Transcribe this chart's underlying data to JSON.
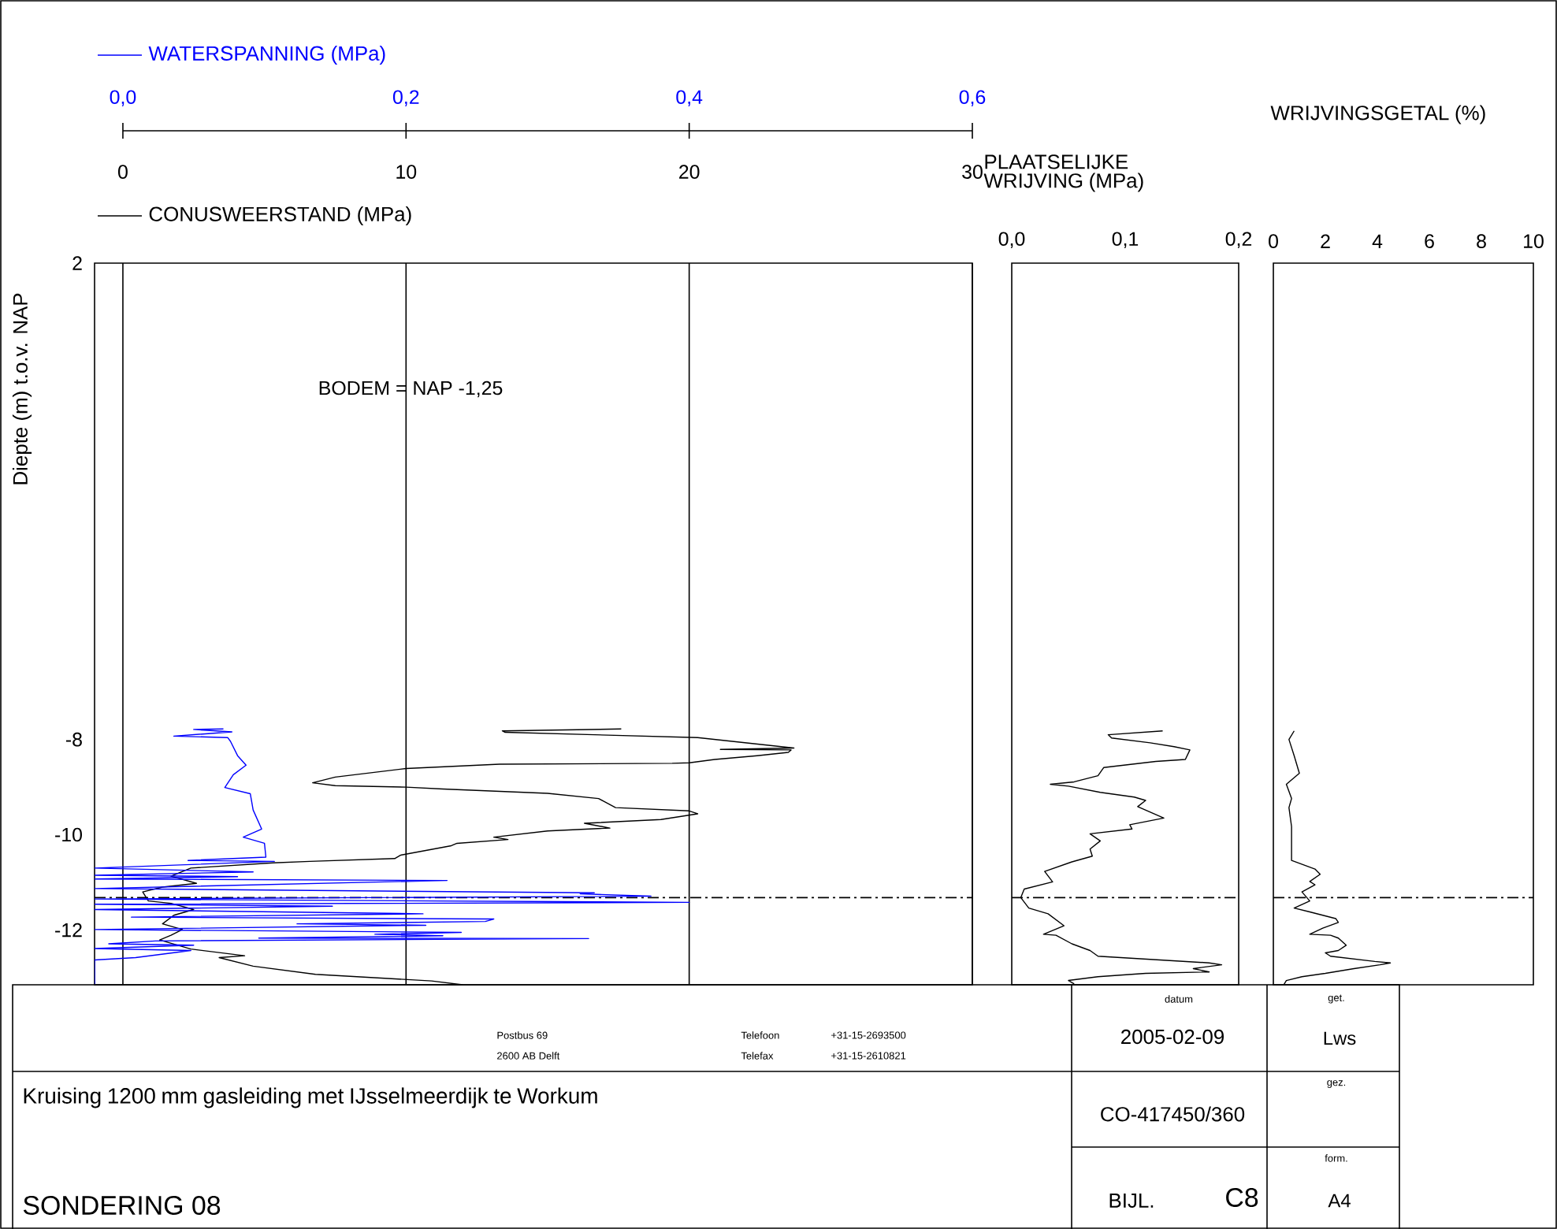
{
  "chart_data": [
    {
      "type": "line",
      "xlim": [
        -1,
        30
      ],
      "xticks": [
        0,
        10,
        20,
        30
      ],
      "x2lim": [
        -0.02,
        0.6
      ],
      "x2ticks": [
        {
          "value": 0,
          "label": "0,0"
        },
        {
          "value": 0.2,
          "label": "0,2"
        },
        {
          "value": 0.4,
          "label": "0,4"
        },
        {
          "value": 0.6,
          "label": "0,6"
        }
      ],
      "ylim": [
        -13.15,
        2
      ],
      "yticks": [
        2,
        -8,
        -10,
        -12
      ],
      "ylabel": "Diepte (m) t.o.v. NAP",
      "grid": "x",
      "legend": "top",
      "ref_lines": [
        {
          "axis": "y",
          "value": -11.32,
          "line_style": "dashdot"
        }
      ],
      "annotations": [
        "BODEM = NAP -1,25",
        "Postbus 69",
        "2600 AB Delft",
        "Telefoon",
        "+31-15-2693500",
        "Telefax",
        "+31-15-2610821",
        "datum",
        "2005-02-09",
        "get.",
        "Lws",
        "gez.",
        "CO-417450/360",
        "form.",
        "A4",
        "BIJL.",
        "C8",
        "Kruising 1200 mm gasleiding met IJsselmeerdijk te Workum",
        "SONDERING 08"
      ],
      "series": [
        {
          "name": "WATERSPANNING (MPa)",
          "color": "#0000ff",
          "axis": "x2",
          "x": [
            0.071,
            0.05,
            0.077,
            0.036,
            0.074,
            0.076,
            0.081,
            0.087,
            0.078,
            0.072,
            0.09,
            0.092,
            0.098,
            0.085,
            0.1,
            0.101,
            0.046,
            0.107,
            -0.02,
            0.092,
            -0.02,
            0.081,
            -0.02,
            0.229,
            -0.02,
            0.333,
            0.323,
            0.373,
            -0.02,
            0.4,
            -0.02,
            0.148,
            -0.02,
            0.212,
            0.006,
            0.262,
            0.256,
            0.123,
            0.214,
            -0.02,
            0.239,
            0.178,
            0.226,
            0.096,
            0.329,
            0.023,
            -0.01,
            0.05,
            -0.02,
            0.048,
            0.009,
            -0.02,
            -0.02
          ],
          "values": [
            -7.78,
            -7.79,
            -7.84,
            -7.93,
            -7.96,
            -8.04,
            -8.34,
            -8.54,
            -8.74,
            -9.01,
            -9.14,
            -9.48,
            -9.88,
            -10.05,
            -10.18,
            -10.47,
            -10.54,
            -10.56,
            -10.7,
            -10.78,
            -10.85,
            -10.88,
            -10.93,
            -10.96,
            -11.13,
            -11.22,
            -11.24,
            -11.29,
            -11.35,
            -11.42,
            -11.46,
            -11.5,
            -11.57,
            -11.66,
            -11.73,
            -11.77,
            -11.82,
            -11.87,
            -11.9,
            -11.99,
            -12.05,
            -12.09,
            -12.12,
            -12.17,
            -12.18,
            -12.23,
            -12.29,
            -12.32,
            -12.39,
            -12.43,
            -12.58,
            -12.63,
            -13.15
          ]
        },
        {
          "name": "CONUSWEERSTAND (MPa)",
          "color": "#000000",
          "x": [
            17.6,
            13.4,
            13.5,
            20.3,
            23.7,
            21.1,
            23.6,
            23.5,
            22.4,
            20.9,
            20.0,
            19.4,
            13.3,
            10.0,
            7.5,
            6.7,
            7.5,
            10.0,
            11.3,
            15.0,
            16.8,
            17.4,
            20.0,
            20.3,
            19.0,
            16.3,
            17.2,
            15.0,
            13.1,
            13.6,
            11.8,
            11.6,
            9.8,
            9.6,
            6.6,
            5.3,
            2.4,
            1.7,
            2.6,
            1.4,
            0.7,
            0.9,
            1.7,
            2.5,
            1.8,
            1.4,
            2.1,
            1.7,
            1.3,
            2.4,
            4.3,
            3.4,
            4.6,
            6.8,
            10.9,
            12.0
          ],
          "values": [
            -7.78,
            -7.82,
            -7.85,
            -7.96,
            -8.18,
            -8.21,
            -8.22,
            -8.27,
            -8.34,
            -8.42,
            -8.49,
            -8.5,
            -8.52,
            -8.61,
            -8.79,
            -8.91,
            -8.97,
            -9.0,
            -9.04,
            -9.13,
            -9.24,
            -9.43,
            -9.5,
            -9.56,
            -9.68,
            -9.76,
            -9.86,
            -9.92,
            -10.05,
            -10.1,
            -10.18,
            -10.23,
            -10.43,
            -10.5,
            -10.56,
            -10.59,
            -10.7,
            -10.87,
            -11.02,
            -11.1,
            -11.2,
            -11.39,
            -11.44,
            -11.57,
            -11.69,
            -11.87,
            -11.99,
            -12.11,
            -12.21,
            -12.4,
            -12.54,
            -12.58,
            -12.76,
            -12.93,
            -13.07,
            -13.15
          ]
        }
      ]
    },
    {
      "type": "line",
      "xlim": [
        0,
        0.2
      ],
      "xticks": [
        {
          "value": 0,
          "label": "0,0"
        },
        {
          "value": 0.1,
          "label": "0,1"
        },
        {
          "value": 0.2,
          "label": "0,2"
        }
      ],
      "ylim": [
        -13.15,
        2
      ],
      "xlabel": "PLAATSELIJKE WRIJVING (MPa)",
      "tick_labels": "x",
      "ref_lines": [
        {
          "axis": "y",
          "value": -11.32,
          "line_style": "dashdot"
        }
      ],
      "series": [
        {
          "color": "#000000",
          "x": [
            0.133,
            0.085,
            0.088,
            0.122,
            0.143,
            0.157,
            0.153,
            0.127,
            0.081,
            0.076,
            0.055,
            0.034,
            0.05,
            0.078,
            0.108,
            0.118,
            0.111,
            0.134,
            0.104,
            0.106,
            0.069,
            0.078,
            0.069,
            0.071,
            0.053,
            0.029,
            0.036,
            0.011,
            0.008,
            0.015,
            0.032,
            0.046,
            0.028,
            0.039,
            0.053,
            0.069,
            0.076,
            0.174,
            0.185,
            0.16,
            0.174,
            0.118,
            0.076,
            0.05,
            0.055
          ],
          "values": [
            -7.82,
            -7.9,
            -7.97,
            -8.07,
            -8.15,
            -8.22,
            -8.42,
            -8.46,
            -8.59,
            -8.76,
            -8.89,
            -8.94,
            -8.98,
            -9.11,
            -9.21,
            -9.28,
            -9.41,
            -9.65,
            -9.79,
            -9.88,
            -9.98,
            -10.13,
            -10.3,
            -10.45,
            -10.57,
            -10.77,
            -10.99,
            -11.14,
            -11.32,
            -11.54,
            -11.66,
            -11.91,
            -12.09,
            -12.11,
            -12.29,
            -12.43,
            -12.55,
            -12.69,
            -12.73,
            -12.81,
            -12.88,
            -12.91,
            -12.98,
            -13.06,
            -13.13
          ]
        }
      ]
    },
    {
      "type": "line",
      "xlim": [
        0,
        10
      ],
      "xticks": [
        0,
        2,
        4,
        6,
        8,
        10
      ],
      "ylim": [
        -13.15,
        2
      ],
      "xlabel": "WRIJVINGSGETAL (%)",
      "tick_labels": "x",
      "ref_lines": [
        {
          "axis": "y",
          "value": -11.32,
          "line_style": "dashdot"
        }
      ],
      "series": [
        {
          "color": "#000000",
          "x": [
            0.8,
            0.6,
            0.8,
            1.0,
            0.5,
            0.7,
            0.6,
            0.7,
            0.7,
            1.6,
            1.8,
            1.4,
            1.6,
            1.1,
            1.4,
            0.8,
            1.4,
            2.4,
            2.5,
            1.9,
            1.4,
            2.2,
            2.5,
            2.8,
            2.5,
            2.0,
            2.2,
            3.9,
            4.5,
            4.1,
            3.1,
            2.0,
            1.1,
            0.5,
            0.4
          ],
          "values": [
            -7.82,
            -8.0,
            -8.34,
            -8.71,
            -8.94,
            -9.24,
            -9.43,
            -9.83,
            -10.54,
            -10.72,
            -10.83,
            -10.98,
            -11.05,
            -11.2,
            -11.39,
            -11.54,
            -11.62,
            -11.76,
            -11.84,
            -11.96,
            -12.09,
            -12.11,
            -12.17,
            -12.32,
            -12.43,
            -12.48,
            -12.55,
            -12.66,
            -12.69,
            -12.73,
            -12.81,
            -12.91,
            -12.98,
            -13.06,
            -13.15
          ]
        }
      ]
    }
  ]
}
